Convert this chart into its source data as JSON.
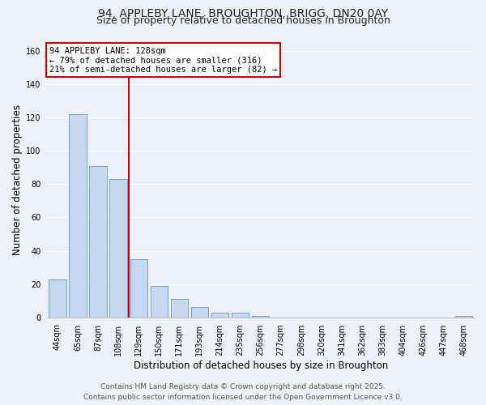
{
  "title_line1": "94, APPLEBY LANE, BROUGHTON, BRIGG, DN20 0AY",
  "title_line2": "Size of property relative to detached houses in Broughton",
  "xlabel": "Distribution of detached houses by size in Broughton",
  "ylabel": "Number of detached properties",
  "categories": [
    "44sqm",
    "65sqm",
    "87sqm",
    "108sqm",
    "129sqm",
    "150sqm",
    "171sqm",
    "193sqm",
    "214sqm",
    "235sqm",
    "256sqm",
    "277sqm",
    "298sqm",
    "320sqm",
    "341sqm",
    "362sqm",
    "383sqm",
    "404sqm",
    "426sqm",
    "447sqm",
    "468sqm"
  ],
  "values": [
    23,
    122,
    91,
    83,
    35,
    19,
    11,
    6,
    3,
    3,
    1,
    0,
    0,
    0,
    0,
    0,
    0,
    0,
    0,
    0,
    1
  ],
  "bar_color": "#c5d8f0",
  "bar_edge_color": "#5b9bd5",
  "marker_label_line1": "94 APPLEBY LANE: 128sqm",
  "marker_label_line2": "← 79% of detached houses are smaller (316)",
  "marker_label_line3": "21% of semi-detached houses are larger (82) →",
  "annotation_box_color": "#ffffff",
  "annotation_box_edge": "#cc0000",
  "marker_line_color": "#cc0000",
  "ylim": [
    0,
    165
  ],
  "yticks": [
    0,
    20,
    40,
    60,
    80,
    100,
    120,
    140,
    160
  ],
  "background_color": "#eef2f8",
  "footer_line1": "Contains HM Land Registry data © Crown copyright and database right 2025.",
  "footer_line2": "Contains public sector information licensed under the Open Government Licence v3.0.",
  "grid_color": "#ffffff",
  "title_fontsize": 10,
  "subtitle_fontsize": 9,
  "axis_label_fontsize": 8.5,
  "tick_fontsize": 7,
  "footer_fontsize": 6.5,
  "annotation_fontsize": 7.5
}
